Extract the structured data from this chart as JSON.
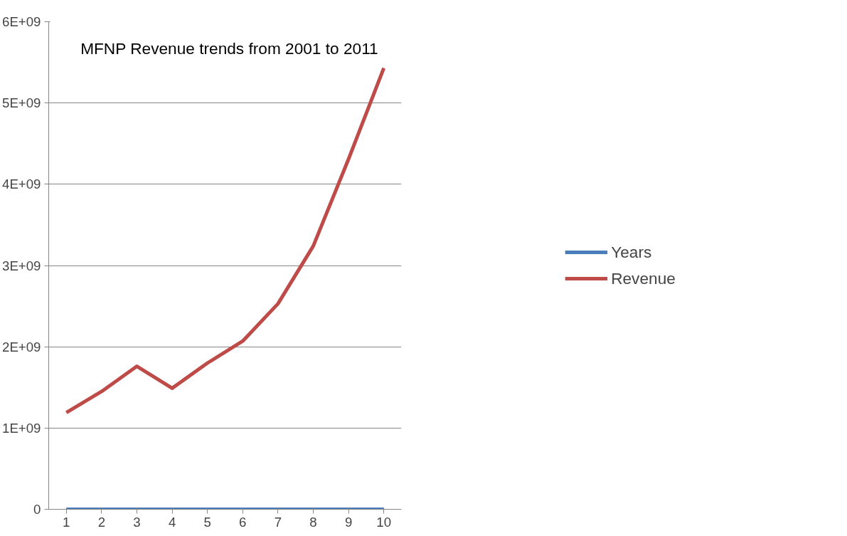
{
  "chart_data": {
    "type": "line",
    "title": "MFNP Revenue trends   from 2001 to 2011",
    "categories": [
      "1",
      "2",
      "3",
      "4",
      "5",
      "6",
      "7",
      "8",
      "9",
      "10"
    ],
    "series": [
      {
        "name": "Years",
        "color": "#4a7ebb",
        "values": [
          2001,
          2002,
          2003,
          2004,
          2005,
          2006,
          2007,
          2008,
          2009,
          2010
        ]
      },
      {
        "name": "Revenue",
        "color": "#be4b48",
        "values": [
          1190000000,
          1450000000,
          1760000000,
          1490000000,
          1800000000,
          2070000000,
          2530000000,
          3240000000,
          4310000000,
          5430000000
        ]
      }
    ],
    "ylim": [
      0,
      6000000000
    ],
    "yticks": [
      0,
      {
        "value": 1000000000,
        "label": "1E+09"
      },
      {
        "value": 2000000000,
        "label": "2E+09"
      },
      {
        "value": 3000000000,
        "label": "3E+09"
      },
      {
        "value": 4000000000,
        "label": "4E+09"
      },
      {
        "value": 5000000000,
        "label": "5E+09"
      },
      {
        "value": 6000000000,
        "label": "6E+09"
      }
    ],
    "grid": "y",
    "legend": "right",
    "marker": "none",
    "line_style": "solid"
  }
}
